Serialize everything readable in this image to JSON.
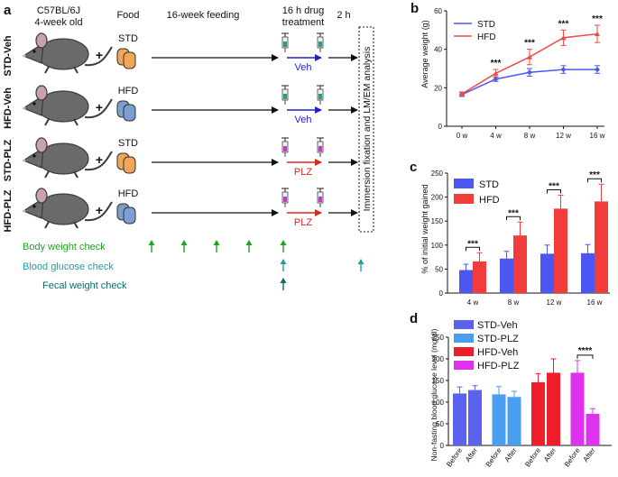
{
  "panel_letters": {
    "a": "a",
    "b": "b",
    "c": "c",
    "d": "d"
  },
  "panel_a": {
    "strain": "C57BL/6J",
    "age": "4-week old",
    "food_header": "Food",
    "feeding_header": "16-week feeding",
    "drug_header_line1": "16 h drug",
    "drug_header_line2": "treatment",
    "interval_header": "2 h",
    "analysis_label": "Immersion fixation and LM/EM analysis",
    "plus": "+",
    "groups": [
      {
        "name": "STD-Veh",
        "diet": "STD",
        "drug": "Veh",
        "drug_color": "#1f1fd6",
        "chow_color": "#f2a65a"
      },
      {
        "name": "HFD-Veh",
        "diet": "HFD",
        "drug": "Veh",
        "drug_color": "#1f1fd6",
        "chow_color": "#7b9fcf"
      },
      {
        "name": "STD-PLZ",
        "diet": "STD",
        "drug": "PLZ",
        "drug_color": "#e8221b",
        "chow_color": "#f2a65a"
      },
      {
        "name": "HFD-PLZ",
        "diet": "HFD",
        "drug": "PLZ",
        "drug_color": "#e8221b",
        "chow_color": "#7b9fcf"
      }
    ],
    "checks": [
      {
        "label": "Body weight check",
        "color": "#22a322"
      },
      {
        "label": "Blood glucose check",
        "color": "#1aa3a3"
      },
      {
        "label": "Fecal weight check",
        "color": "#0e6b5e"
      }
    ]
  },
  "chart_data": [
    {
      "panel": "b",
      "type": "line",
      "categories": [
        "0 w",
        "4 w",
        "8 w",
        "12 w",
        "16 w"
      ],
      "ylabel": "Average weight (g)",
      "xlabel": "",
      "ylim": [
        0,
        60
      ],
      "yticks": [
        "0",
        "20",
        "40",
        "60"
      ],
      "legend": "top-left",
      "series": [
        {
          "name": "STD",
          "color": "#4b57f0",
          "values": [
            16.5,
            24.5,
            28,
            29.5,
            29.5
          ],
          "errors": [
            1,
            1.2,
            2,
            2,
            2
          ]
        },
        {
          "name": "HFD",
          "color": "#f04a4a",
          "values": [
            16.8,
            27.5,
            36,
            46,
            48
          ],
          "errors": [
            1,
            2,
            4,
            4,
            4.5
          ]
        }
      ],
      "annotations": [
        "***",
        "***",
        "***",
        "***"
      ]
    },
    {
      "panel": "c",
      "type": "bar",
      "categories": [
        "4 w",
        "8 w",
        "12 w",
        "16 w"
      ],
      "ylabel": "% of initial weight gained",
      "xlabel": "",
      "ylim": [
        0,
        250
      ],
      "yticks": [
        "0",
        "50",
        "100",
        "150",
        "200",
        "250"
      ],
      "legend": "top-left",
      "series": [
        {
          "name": "STD",
          "color": "#4b57f0",
          "values": [
            48,
            72,
            82,
            83
          ],
          "errors": [
            12,
            15,
            18,
            18
          ]
        },
        {
          "name": "HFD",
          "color": "#f23c3c",
          "values": [
            66,
            120,
            176,
            191
          ],
          "errors": [
            18,
            28,
            28,
            36
          ]
        }
      ],
      "annotations": [
        "***",
        "***",
        "***",
        "***"
      ]
    },
    {
      "panel": "d",
      "type": "bar",
      "groups": [
        "STD-Veh",
        "STD-PLZ",
        "HFD-Veh",
        "HFD-PLZ"
      ],
      "subcategories": [
        "Before",
        "After"
      ],
      "ylabel": "Non-fasting blood glucose level (mg/dl)",
      "xlabel": "",
      "ylim": [
        0,
        250
      ],
      "yticks": [
        "0",
        "50",
        "100",
        "150",
        "200",
        "250"
      ],
      "legend": "top-left",
      "series": [
        {
          "name": "STD-Veh",
          "color": "#5b63ee",
          "values": [
            120,
            128
          ],
          "errors": [
            15,
            10
          ]
        },
        {
          "name": "STD-PLZ",
          "color": "#4a9ef0",
          "values": [
            118,
            112
          ],
          "errors": [
            18,
            13
          ]
        },
        {
          "name": "HFD-Veh",
          "color": "#ee1f2a",
          "values": [
            146,
            168
          ],
          "errors": [
            20,
            32
          ]
        },
        {
          "name": "HFD-PLZ",
          "color": "#dd33ee",
          "values": [
            168,
            73
          ],
          "errors": [
            28,
            12
          ]
        }
      ],
      "annotations": [
        "****"
      ]
    }
  ]
}
